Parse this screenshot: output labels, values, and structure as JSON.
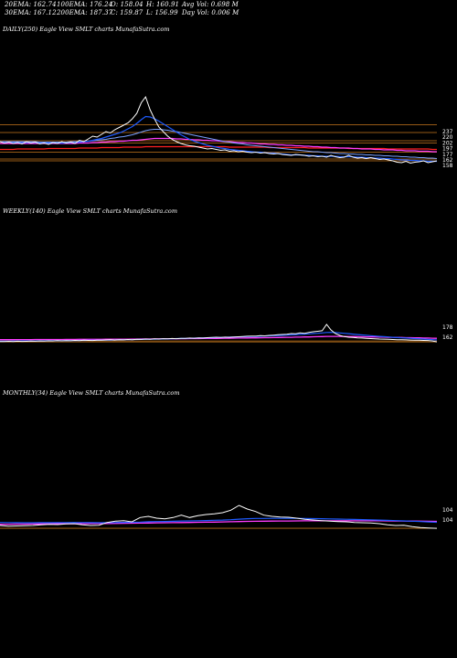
{
  "header": {
    "row1": [
      {
        "text": "20EMA: 162.74"
      },
      {
        "text": "100EMA: 176.24"
      },
      {
        "text": "O: 158.04"
      },
      {
        "text": "H: 160.91"
      },
      {
        "text": "Avg Vol: 0.698  M"
      }
    ],
    "row2": [
      {
        "text": "30EMA: 167.12"
      },
      {
        "text": "200EMA: 187.37"
      },
      {
        "text": "C: 159.87"
      },
      {
        "text": "L: 156.99"
      },
      {
        "text": "Day Vol: 0.006  M"
      }
    ]
  },
  "colors": {
    "price": "#ffffff",
    "ema_short": "#1e5bff",
    "ema_mid": "#7aa0ff",
    "ema_long": "#ff3cff",
    "ema_200": "#ff2020",
    "orange": "#c8781e"
  },
  "chart_data": [
    {
      "type": "line",
      "label": "DAILY(250) Eagle  View  SMLT charts MunafaSutra.com",
      "right_ticks": [
        "237",
        "220",
        "202",
        "197",
        "177",
        "162",
        "158"
      ],
      "ylim": [
        130,
        320
      ],
      "price": [
        200,
        197,
        199,
        196,
        198,
        195,
        200,
        197,
        199,
        195,
        197,
        194,
        198,
        196,
        200,
        197,
        199,
        196,
        203,
        200,
        206,
        212,
        210,
        216,
        222,
        219,
        226,
        231,
        236,
        241,
        250,
        262,
        285,
        298,
        270,
        250,
        232,
        222,
        212,
        205,
        200,
        196,
        193,
        191,
        190,
        188,
        186,
        184,
        185,
        183,
        181,
        182,
        179,
        180,
        178,
        179,
        177,
        176,
        177,
        175,
        176,
        174,
        173,
        174,
        172,
        171,
        170,
        172,
        171,
        170,
        168,
        169,
        167,
        168,
        166,
        170,
        167,
        165,
        166,
        170,
        166,
        164,
        165,
        163,
        165,
        163,
        161,
        162,
        160,
        158,
        155,
        154,
        157,
        153,
        155,
        156,
        158,
        154,
        156,
        158
      ],
      "ema20": [
        200,
        199,
        199,
        198,
        198,
        198,
        198,
        198,
        198,
        197,
        197,
        197,
        197,
        197,
        197,
        197,
        198,
        198,
        199,
        200,
        201,
        203,
        205,
        207,
        210,
        213,
        216,
        219,
        223,
        228,
        233,
        240,
        248,
        255,
        254,
        250,
        245,
        239,
        233,
        227,
        221,
        215,
        210,
        205,
        201,
        198,
        195,
        192,
        190,
        188,
        186,
        185,
        183,
        182,
        181,
        180,
        179,
        178,
        177,
        177,
        176,
        175,
        175,
        174,
        173,
        172,
        171,
        171,
        171,
        170,
        170,
        169,
        169,
        168,
        168,
        168,
        168,
        167,
        167,
        167,
        167,
        166,
        166,
        165,
        165,
        164,
        164,
        163,
        163,
        162,
        161,
        160,
        160,
        159,
        159,
        158,
        158,
        157,
        157,
        157
      ],
      "ema50": [
        200,
        200,
        200,
        200,
        200,
        200,
        200,
        200,
        200,
        199,
        199,
        199,
        199,
        199,
        199,
        199,
        200,
        200,
        200,
        201,
        201,
        202,
        203,
        204,
        205,
        207,
        208,
        210,
        211,
        213,
        215,
        218,
        221,
        224,
        226,
        227,
        227,
        226,
        225,
        223,
        222,
        220,
        218,
        216,
        214,
        212,
        210,
        208,
        206,
        204,
        202,
        200,
        199,
        197,
        196,
        195,
        193,
        192,
        191,
        190,
        189,
        188,
        187,
        186,
        185,
        184,
        183,
        182,
        181,
        180,
        179,
        178,
        178,
        177,
        176,
        176,
        175,
        174,
        174,
        173,
        173,
        172,
        172,
        171,
        171,
        170,
        170,
        169,
        169,
        168,
        168,
        167,
        167,
        166,
        166,
        165,
        165,
        164,
        164,
        163
      ],
      "ema100": [
        196,
        196,
        196,
        196,
        196,
        196,
        196,
        196,
        196,
        196,
        196,
        196,
        196,
        196,
        196,
        196,
        196,
        196,
        197,
        197,
        197,
        198,
        198,
        199,
        199,
        200,
        200,
        201,
        201,
        202,
        203,
        203,
        204,
        205,
        206,
        207,
        207,
        207,
        207,
        207,
        206,
        206,
        205,
        205,
        204,
        204,
        203,
        203,
        202,
        202,
        201,
        200,
        200,
        199,
        198,
        198,
        197,
        197,
        196,
        195,
        195,
        194,
        194,
        193,
        193,
        192,
        192,
        191,
        191,
        190,
        190,
        189,
        189,
        188,
        188,
        187,
        187,
        186,
        186,
        186,
        185,
        185,
        184,
        184,
        184,
        183,
        183,
        182,
        182,
        182,
        181,
        181,
        180,
        180,
        180,
        179,
        179,
        179,
        178,
        178
      ],
      "ema200": [
        183,
        183,
        183,
        183,
        184,
        184,
        184,
        184,
        184,
        184,
        184,
        185,
        185,
        185,
        185,
        185,
        185,
        185,
        186,
        186,
        186,
        186,
        186,
        187,
        187,
        187,
        187,
        187,
        188,
        188,
        188,
        188,
        188,
        189,
        189,
        189,
        189,
        189,
        189,
        189,
        189,
        189,
        189,
        189,
        189,
        189,
        189,
        189,
        189,
        189,
        189,
        189,
        188,
        188,
        188,
        188,
        188,
        188,
        188,
        188,
        188,
        187,
        187,
        187,
        187,
        187,
        187,
        187,
        187,
        187,
        186,
        186,
        186,
        186,
        186,
        186,
        186,
        186,
        186,
        185,
        185,
        185,
        185,
        185,
        185,
        185,
        185,
        185,
        184,
        184,
        184,
        184,
        184,
        184,
        184,
        184,
        184,
        184,
        183,
        183
      ],
      "hlines": [
        237,
        220,
        202,
        197,
        177,
        162,
        158
      ]
    },
    {
      "type": "line",
      "label": "WEEKLY(140) Eagle  View  SMLT charts MunafaSutra.com",
      "right_ticks": [
        "178",
        "162"
      ],
      "ylim": [
        0,
        900
      ],
      "price": [
        170,
        168,
        172,
        169,
        174,
        171,
        173,
        176,
        174,
        178,
        175,
        180,
        178,
        183,
        180,
        185,
        182,
        188,
        185,
        190,
        188,
        186,
        192,
        190,
        195,
        198,
        193,
        200,
        197,
        203,
        200,
        207,
        204,
        210,
        207,
        213,
        210,
        216,
        213,
        219,
        216,
        222,
        220,
        226,
        223,
        229,
        226,
        232,
        236,
        240,
        235,
        242,
        238,
        245,
        248,
        252,
        256,
        260,
        258,
        266,
        262,
        270,
        274,
        280,
        285,
        290,
        300,
        296,
        310,
        305,
        320,
        330,
        338,
        346,
        450,
        360,
        300,
        270,
        250,
        240,
        235,
        230,
        226,
        222,
        218,
        214,
        210,
        208,
        205,
        202,
        200,
        198,
        196,
        194,
        192,
        190,
        188,
        186,
        178,
        162
      ],
      "ema20": [
        176,
        176,
        176,
        177,
        177,
        178,
        178,
        179,
        179,
        180,
        180,
        181,
        182,
        183,
        183,
        184,
        185,
        186,
        187,
        188,
        189,
        190,
        191,
        192,
        193,
        194,
        195,
        197,
        198,
        199,
        201,
        202,
        204,
        205,
        207,
        208,
        210,
        212,
        213,
        215,
        217,
        219,
        221,
        223,
        225,
        227,
        229,
        231,
        233,
        235,
        237,
        239,
        241,
        243,
        245,
        247,
        250,
        252,
        254,
        257,
        259,
        262,
        265,
        268,
        271,
        275,
        279,
        283,
        287,
        291,
        296,
        301,
        305,
        310,
        318,
        320,
        316,
        311,
        305,
        298,
        291,
        284,
        278,
        272,
        266,
        260,
        254,
        249,
        244,
        239,
        234,
        230,
        226,
        222,
        218,
        214,
        210,
        206,
        200,
        195
      ],
      "ema100": [
        200,
        200,
        200,
        200,
        201,
        201,
        201,
        201,
        202,
        202,
        202,
        202,
        203,
        203,
        203,
        204,
        204,
        204,
        205,
        205,
        205,
        206,
        206,
        206,
        207,
        207,
        208,
        208,
        209,
        209,
        210,
        210,
        211,
        211,
        212,
        212,
        213,
        213,
        214,
        214,
        215,
        216,
        216,
        217,
        218,
        218,
        219,
        220,
        220,
        221,
        222,
        223,
        224,
        225,
        226,
        227,
        228,
        229,
        230,
        231,
        232,
        233,
        234,
        235,
        237,
        238,
        239,
        241,
        242,
        244,
        245,
        247,
        249,
        250,
        253,
        254,
        254,
        253,
        252,
        251,
        250,
        249,
        248,
        246,
        245,
        244,
        242,
        241,
        239,
        238,
        236,
        235,
        233,
        232,
        230,
        229,
        227,
        226,
        224,
        222
      ],
      "hlines": [
        178,
        162
      ]
    },
    {
      "type": "line",
      "label": "MONTHLY(34) Eagle  View  SMLT charts MunafaSutra.com",
      "right_ticks": [
        "104",
        "104"
      ],
      "ylim": [
        0,
        900
      ],
      "price": [
        150,
        140,
        142,
        145,
        150,
        160,
        170,
        165,
        175,
        180,
        160,
        150,
        155,
        200,
        220,
        230,
        210,
        280,
        300,
        270,
        260,
        280,
        320,
        280,
        310,
        330,
        340,
        360,
        400,
        480,
        420,
        380,
        320,
        300,
        290,
        285,
        270,
        250,
        240,
        230,
        220,
        215,
        210,
        200,
        195,
        190,
        180,
        160,
        150,
        155,
        130,
        115,
        110,
        104
      ],
      "ema20": [
        200,
        198,
        196,
        195,
        195,
        196,
        197,
        197,
        198,
        199,
        198,
        196,
        195,
        196,
        198,
        201,
        202,
        206,
        211,
        214,
        216,
        219,
        223,
        225,
        228,
        231,
        235,
        239,
        245,
        254,
        261,
        265,
        266,
        267,
        267,
        267,
        267,
        265,
        263,
        261,
        258,
        255,
        252,
        249,
        246,
        243,
        239,
        234,
        229,
        225,
        220,
        214,
        208,
        202
      ],
      "ema100": [
        170,
        171,
        172,
        173,
        174,
        175,
        176,
        177,
        178,
        179,
        180,
        181,
        182,
        183,
        185,
        186,
        188,
        189,
        191,
        193,
        195,
        196,
        198,
        200,
        202,
        204,
        206,
        208,
        211,
        214,
        217,
        219,
        220,
        222,
        223,
        224,
        225,
        226,
        226,
        227,
        227,
        227,
        227,
        227,
        227,
        226,
        226,
        225,
        224,
        223,
        222,
        221,
        219,
        218
      ],
      "hlines": [
        104,
        104
      ]
    }
  ]
}
